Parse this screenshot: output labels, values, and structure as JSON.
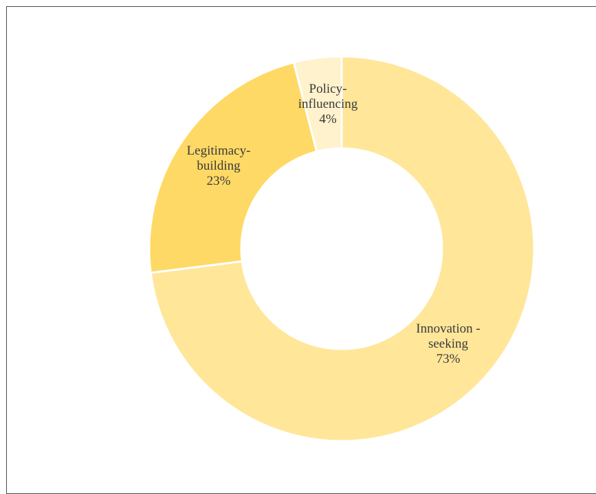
{
  "chart_data": {
    "type": "pie",
    "donut": true,
    "slices": [
      {
        "label_lines": [
          "Innovation -",
          "seeking"
        ],
        "value": 73,
        "value_label": "73%",
        "color": "#FFE699"
      },
      {
        "label_lines": [
          "Legitimacy-",
          "building"
        ],
        "value": 23,
        "value_label": "23%",
        "color": "#FFD966"
      },
      {
        "label_lines": [
          "Policy-",
          "influencing"
        ],
        "value": 4,
        "value_label": "4%",
        "color": "#FFF2CC"
      }
    ],
    "start": "top",
    "direction": "clockwise",
    "legend": "none"
  }
}
